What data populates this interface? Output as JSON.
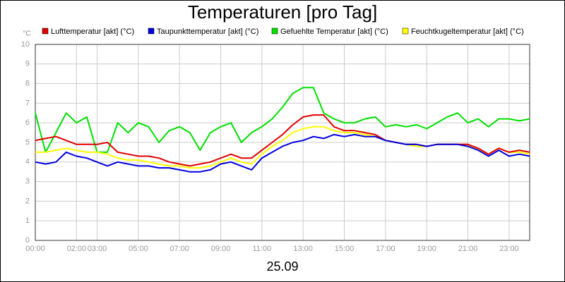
{
  "chart_data": {
    "type": "line",
    "title": "Temperaturen [pro Tag]",
    "y_unit": "°C",
    "x_label": "25.09",
    "x": [
      0,
      0.5,
      1,
      1.5,
      2,
      2.5,
      3,
      3.5,
      4,
      4.5,
      5,
      5.5,
      6,
      6.5,
      7,
      7.5,
      8,
      8.5,
      9,
      9.5,
      10,
      10.5,
      11,
      11.5,
      12,
      12.5,
      13,
      13.5,
      14,
      14.5,
      15,
      15.5,
      16,
      16.5,
      17,
      17.5,
      18,
      18.5,
      19,
      19.5,
      20,
      20.5,
      21,
      21.5,
      22,
      22.5,
      23,
      23.5,
      24
    ],
    "series": [
      {
        "name": "Lufttemperatur [akt] (°C)",
        "color": "#e00000",
        "values": [
          5.1,
          5.2,
          5.3,
          5.1,
          4.9,
          4.9,
          4.9,
          5.0,
          4.5,
          4.4,
          4.3,
          4.3,
          4.2,
          4.0,
          3.9,
          3.8,
          3.9,
          4.0,
          4.2,
          4.4,
          4.2,
          4.2,
          4.6,
          5.0,
          5.4,
          5.9,
          6.3,
          6.4,
          6.4,
          5.8,
          5.6,
          5.6,
          5.5,
          5.4,
          5.1,
          5.0,
          4.9,
          4.9,
          4.8,
          4.9,
          4.9,
          4.9,
          4.9,
          4.7,
          4.4,
          4.7,
          4.5,
          4.6,
          4.5
        ]
      },
      {
        "name": "Taupunkttemperatur [akt] (°C)",
        "color": "#0000e0",
        "values": [
          4.0,
          3.9,
          4.0,
          4.5,
          4.3,
          4.2,
          4.0,
          3.8,
          4.0,
          3.9,
          3.8,
          3.8,
          3.7,
          3.7,
          3.6,
          3.5,
          3.5,
          3.6,
          3.9,
          4.0,
          3.8,
          3.6,
          4.2,
          4.5,
          4.8,
          5.0,
          5.1,
          5.3,
          5.2,
          5.4,
          5.3,
          5.4,
          5.3,
          5.3,
          5.1,
          5.0,
          4.9,
          4.9,
          4.8,
          4.9,
          4.9,
          4.9,
          4.8,
          4.6,
          4.3,
          4.6,
          4.3,
          4.4,
          4.3
        ]
      },
      {
        "name": "Gefuehlte Temperatur [akt] (°C)",
        "color": "#00e000",
        "values": [
          6.5,
          4.5,
          5.5,
          6.5,
          6.0,
          6.3,
          4.5,
          4.5,
          6.0,
          5.5,
          6.0,
          5.8,
          5.0,
          5.6,
          5.8,
          5.5,
          4.6,
          5.5,
          5.8,
          6.0,
          5.0,
          5.5,
          5.8,
          6.2,
          6.8,
          7.5,
          7.8,
          7.8,
          6.5,
          6.2,
          6.0,
          6.0,
          6.2,
          6.3,
          5.8,
          5.9,
          5.8,
          5.9,
          5.7,
          6.0,
          6.3,
          6.5,
          6.0,
          6.2,
          5.8,
          6.2,
          6.2,
          6.1,
          6.2
        ]
      },
      {
        "name": "Feuchtkugeltemperatur [akt] (°C)",
        "color": "#ffff00",
        "values": [
          4.5,
          4.5,
          4.6,
          4.7,
          4.6,
          4.5,
          4.5,
          4.4,
          4.2,
          4.1,
          4.1,
          4.0,
          3.9,
          3.8,
          3.8,
          3.7,
          3.7,
          3.8,
          4.0,
          4.2,
          4.0,
          3.9,
          4.4,
          4.8,
          5.1,
          5.5,
          5.7,
          5.8,
          5.8,
          5.6,
          5.5,
          5.5,
          5.4,
          5.3,
          5.1,
          5.0,
          4.9,
          4.8,
          4.8,
          4.9,
          4.9,
          4.9,
          4.9,
          4.6,
          4.4,
          4.7,
          4.5,
          4.5,
          4.4
        ]
      }
    ],
    "xlim": [
      0,
      24
    ],
    "xticks": [
      {
        "value": 0,
        "label": "00:00"
      },
      {
        "value": 2,
        "label": "02:00"
      },
      {
        "value": 3,
        "label": "03:00"
      },
      {
        "value": 5,
        "label": "05:00"
      },
      {
        "value": 7,
        "label": "07:00"
      },
      {
        "value": 9,
        "label": "09:00"
      },
      {
        "value": 11,
        "label": "11:00"
      },
      {
        "value": 13,
        "label": "13:00"
      },
      {
        "value": 15,
        "label": "15:00"
      },
      {
        "value": 17,
        "label": "17:00"
      },
      {
        "value": 19,
        "label": "19:00"
      },
      {
        "value": 21,
        "label": "21:00"
      },
      {
        "value": 23,
        "label": "23:00"
      }
    ],
    "ylim": [
      0,
      10
    ],
    "yticks": [
      0,
      1,
      2,
      3,
      4,
      5,
      6,
      7,
      8,
      9,
      10
    ],
    "grid": true
  }
}
